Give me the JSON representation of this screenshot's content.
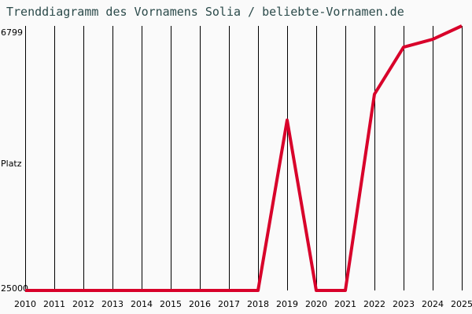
{
  "title": "Trenddiagramm des Vornamens Solia / beliebte-Vornamen.de",
  "y_axis": {
    "top_label": "6799",
    "middle_label": "Platz",
    "bottom_label": "25000"
  },
  "colors": {
    "line": "#d8002a",
    "grid": "#000000",
    "background": "#fafafa",
    "title": "#2b4a4a"
  },
  "chart_data": {
    "type": "line",
    "title": "Trenddiagramm des Vornamens Solia / beliebte-Vornamen.de",
    "xlabel": "",
    "ylabel": "Platz",
    "categories": [
      "2010",
      "2011",
      "2012",
      "2013",
      "2014",
      "2015",
      "2016",
      "2017",
      "2018",
      "2019",
      "2020",
      "2021",
      "2022",
      "2023",
      "2024",
      "2025"
    ],
    "series": [
      {
        "name": "Solia",
        "values": [
          25000,
          25000,
          25000,
          25000,
          25000,
          25000,
          25000,
          25000,
          25000,
          13280,
          25000,
          25000,
          11500,
          8260,
          7720,
          6799
        ]
      }
    ],
    "ylim": [
      25000,
      6799
    ],
    "y_inverted": true,
    "grid": "vertical lines at each year",
    "legend": "none"
  }
}
